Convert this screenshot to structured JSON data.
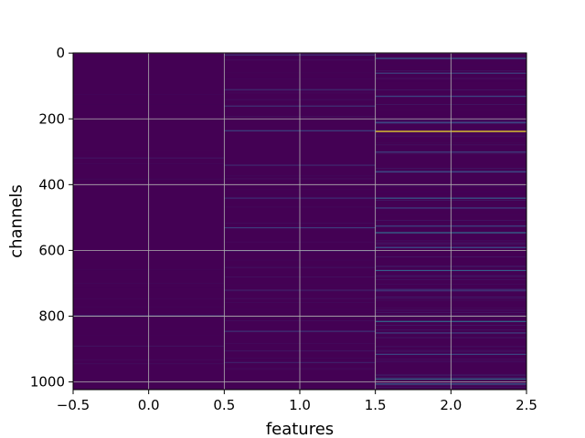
{
  "chart_data": {
    "type": "heatmap",
    "title": "",
    "xlabel": "features",
    "ylabel": "channels",
    "x_range": [
      -0.5,
      2.5
    ],
    "y_range": [
      1023.5,
      -0.5
    ],
    "y_inverted": true,
    "columns": [
      0,
      1,
      2
    ],
    "rows": 1024,
    "x_ticks": [
      {
        "value": -0.5,
        "label": "−0.5"
      },
      {
        "value": 0.0,
        "label": "0.0"
      },
      {
        "value": 0.5,
        "label": "0.5"
      },
      {
        "value": 1.0,
        "label": "1.0"
      },
      {
        "value": 1.5,
        "label": "1.5"
      },
      {
        "value": 2.0,
        "label": "2.0"
      },
      {
        "value": 2.5,
        "label": "2.5"
      }
    ],
    "y_ticks": [
      {
        "value": 0,
        "label": "0"
      },
      {
        "value": 200,
        "label": "200"
      },
      {
        "value": 400,
        "label": "400"
      },
      {
        "value": 600,
        "label": "600"
      },
      {
        "value": 800,
        "label": "800"
      },
      {
        "value": 1000,
        "label": "1000"
      }
    ],
    "grid": true,
    "colormap": "viridis",
    "background_color": "#440154",
    "notable_lines": [
      {
        "column": 0,
        "row": 798,
        "value": 0.18
      },
      {
        "column": 0,
        "row": 318,
        "value": 0.06
      },
      {
        "column": 0,
        "row": 890,
        "value": 0.05
      },
      {
        "column": 1,
        "row": 5,
        "value": 0.12
      },
      {
        "column": 1,
        "row": 110,
        "value": 0.12
      },
      {
        "column": 1,
        "row": 160,
        "value": 0.15
      },
      {
        "column": 1,
        "row": 235,
        "value": 0.2
      },
      {
        "column": 1,
        "row": 340,
        "value": 0.12
      },
      {
        "column": 1,
        "row": 440,
        "value": 0.13
      },
      {
        "column": 1,
        "row": 530,
        "value": 0.18
      },
      {
        "column": 1,
        "row": 600,
        "value": 0.12
      },
      {
        "column": 1,
        "row": 720,
        "value": 0.1
      },
      {
        "column": 1,
        "row": 845,
        "value": 0.16
      },
      {
        "column": 1,
        "row": 940,
        "value": 0.1
      },
      {
        "column": 2,
        "row": 15,
        "value": 0.3
      },
      {
        "column": 2,
        "row": 60,
        "value": 0.2
      },
      {
        "column": 2,
        "row": 130,
        "value": 0.2
      },
      {
        "column": 2,
        "row": 210,
        "value": 0.25
      },
      {
        "column": 2,
        "row": 237,
        "value": 1.0
      },
      {
        "column": 2,
        "row": 300,
        "value": 0.2
      },
      {
        "column": 2,
        "row": 360,
        "value": 0.25
      },
      {
        "column": 2,
        "row": 440,
        "value": 0.3
      },
      {
        "column": 2,
        "row": 470,
        "value": 0.2
      },
      {
        "column": 2,
        "row": 525,
        "value": 0.22
      },
      {
        "column": 2,
        "row": 545,
        "value": 0.35
      },
      {
        "column": 2,
        "row": 590,
        "value": 0.25
      },
      {
        "column": 2,
        "row": 660,
        "value": 0.3
      },
      {
        "column": 2,
        "row": 720,
        "value": 0.22
      },
      {
        "column": 2,
        "row": 815,
        "value": 0.35
      },
      {
        "column": 2,
        "row": 850,
        "value": 0.2
      },
      {
        "column": 2,
        "row": 915,
        "value": 0.22
      },
      {
        "column": 2,
        "row": 990,
        "value": 0.35
      },
      {
        "column": 2,
        "row": 1005,
        "value": 0.28
      }
    ]
  }
}
